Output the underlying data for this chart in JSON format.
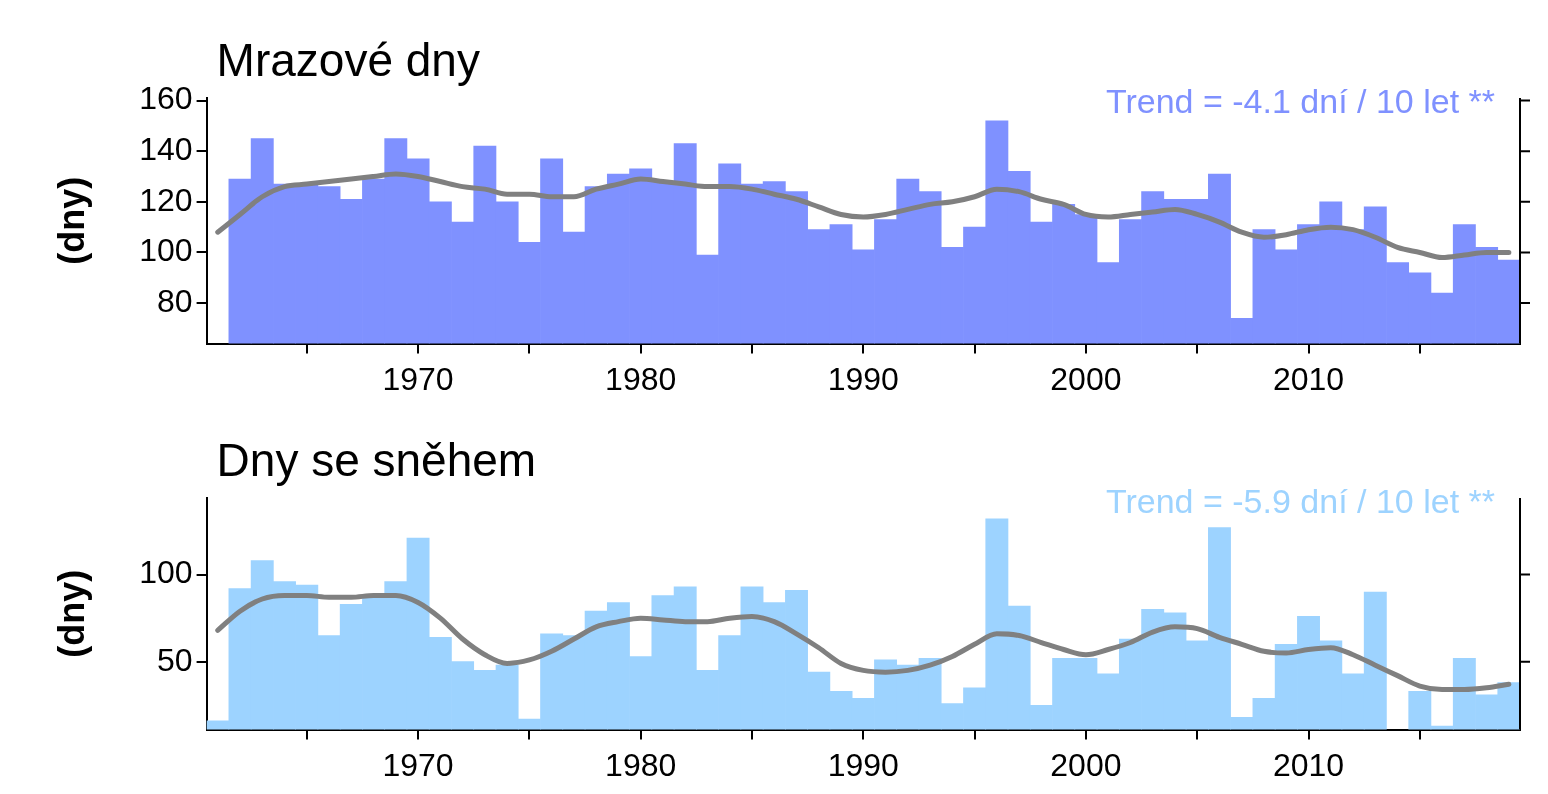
{
  "chart_data": [
    {
      "type": "bar",
      "title": "Mrazové dny",
      "ylabel": "(dny)",
      "annotations": [
        "Trend = -4.1 dní / 10 let **"
      ],
      "x": [
        1961,
        1962,
        1963,
        1964,
        1965,
        1966,
        1967,
        1968,
        1969,
        1970,
        1971,
        1972,
        1973,
        1974,
        1975,
        1976,
        1977,
        1978,
        1979,
        1980,
        1981,
        1982,
        1983,
        1984,
        1985,
        1986,
        1987,
        1988,
        1989,
        1990,
        1991,
        1992,
        1993,
        1994,
        1995,
        1996,
        1997,
        1998,
        1999,
        2000,
        2001,
        2002,
        2003,
        2004,
        2005,
        2006,
        2007,
        2008,
        2009,
        2010,
        2011,
        2012,
        2013,
        2014,
        2015,
        2016,
        2017,
        2018,
        2019
      ],
      "series": [
        {
          "color": "#7f91ff",
          "values": [
            null,
            129,
            145,
            127,
            127,
            126,
            121,
            129,
            145,
            137,
            120,
            112,
            142,
            120,
            104,
            137,
            108,
            126,
            131,
            133,
            128,
            143,
            99,
            135,
            127,
            128,
            124,
            109,
            111,
            101,
            113,
            129,
            124,
            102,
            110,
            152,
            132,
            112,
            119,
            115,
            96,
            113,
            124,
            121,
            121,
            131,
            74,
            109,
            101,
            111,
            120,
            109,
            118,
            96,
            92,
            84,
            111,
            102,
            97
          ]
        },
        {
          "type": "line",
          "color": "#808080",
          "values": [
            108,
            115,
            122,
            126,
            127,
            128,
            129,
            130,
            131,
            130,
            128,
            126,
            125,
            123,
            123,
            122,
            122,
            125,
            127,
            129,
            128,
            127,
            126,
            126,
            125,
            123,
            121,
            118,
            115,
            114,
            115,
            117,
            119,
            120,
            122,
            125,
            124,
            121,
            119,
            115,
            114,
            115,
            116,
            117,
            115,
            112,
            108,
            106,
            107,
            109,
            110,
            109,
            106,
            102,
            100,
            98,
            99,
            100,
            100
          ]
        }
      ],
      "xlim": [
        1960.5,
        2019.5
      ],
      "xticks": [
        {
          "value": 1965,
          "label": null
        },
        1970,
        {
          "value": 1975,
          "label": null
        },
        1980,
        {
          "value": 1985,
          "label": null
        },
        1990,
        {
          "value": 1995,
          "label": null
        },
        2000,
        {
          "value": 2005,
          "label": null
        },
        2010,
        {
          "value": 2015,
          "label": null
        }
      ],
      "ylim": [
        64,
        161
      ],
      "yticks": [
        80,
        100,
        120,
        140,
        160
      ],
      "grid": false,
      "legend": false
    },
    {
      "type": "bar",
      "title": "Dny se sněhem",
      "ylabel": "(dny)",
      "annotations": [
        "Trend = -5.9 dní / 10 let **"
      ],
      "x": [
        1961,
        1962,
        1963,
        1964,
        1965,
        1966,
        1967,
        1968,
        1969,
        1970,
        1971,
        1972,
        1973,
        1974,
        1975,
        1976,
        1977,
        1978,
        1979,
        1980,
        1981,
        1982,
        1983,
        1984,
        1985,
        1986,
        1987,
        1988,
        1989,
        1990,
        1991,
        1992,
        1993,
        1994,
        1995,
        1996,
        1997,
        1998,
        1999,
        2000,
        2001,
        2002,
        2003,
        2004,
        2005,
        2006,
        2007,
        2008,
        2009,
        2010,
        2011,
        2012,
        2013,
        2014,
        2015,
        2016,
        2017,
        2018,
        2019
      ],
      "series": [
        {
          "color": "#9dd3ff",
          "values": [
            16,
            92,
            108,
            96,
            94,
            65,
            83,
            88,
            96,
            121,
            64,
            50,
            45,
            48,
            17,
            66,
            65,
            79,
            84,
            53,
            88,
            93,
            45,
            65,
            93,
            84,
            91,
            44,
            33,
            29,
            51,
            48,
            52,
            26,
            35,
            132,
            82,
            25,
            52,
            52,
            43,
            63,
            80,
            78,
            62,
            127,
            18,
            29,
            60,
            76,
            62,
            43,
            90,
            null,
            33,
            13,
            52,
            31,
            38
          ]
        },
        {
          "type": "line",
          "color": "#808080",
          "values": [
            68,
            79,
            86,
            88,
            88,
            87,
            87,
            88,
            88,
            84,
            75,
            63,
            54,
            49,
            51,
            56,
            63,
            70,
            73,
            75,
            74,
            73,
            73,
            75,
            76,
            73,
            66,
            58,
            49,
            45,
            44,
            45,
            48,
            53,
            60,
            66,
            65,
            61,
            57,
            54,
            57,
            61,
            67,
            70,
            69,
            64,
            60,
            56,
            55,
            57,
            58,
            54,
            48,
            42,
            36,
            34,
            34,
            35,
            37
          ]
        }
      ],
      "xlim": [
        1960.5,
        2019.5
      ],
      "xticks": [
        {
          "value": 1965,
          "label": null
        },
        1970,
        {
          "value": 1975,
          "label": null
        },
        1980,
        {
          "value": 1985,
          "label": null
        },
        1990,
        {
          "value": 1995,
          "label": null
        },
        2000,
        {
          "value": 2005,
          "label": null
        },
        2010,
        {
          "value": 2015,
          "label": null
        }
      ],
      "ylim": [
        11,
        144
      ],
      "yticks": [
        50,
        100
      ],
      "grid": false,
      "legend": false
    }
  ]
}
